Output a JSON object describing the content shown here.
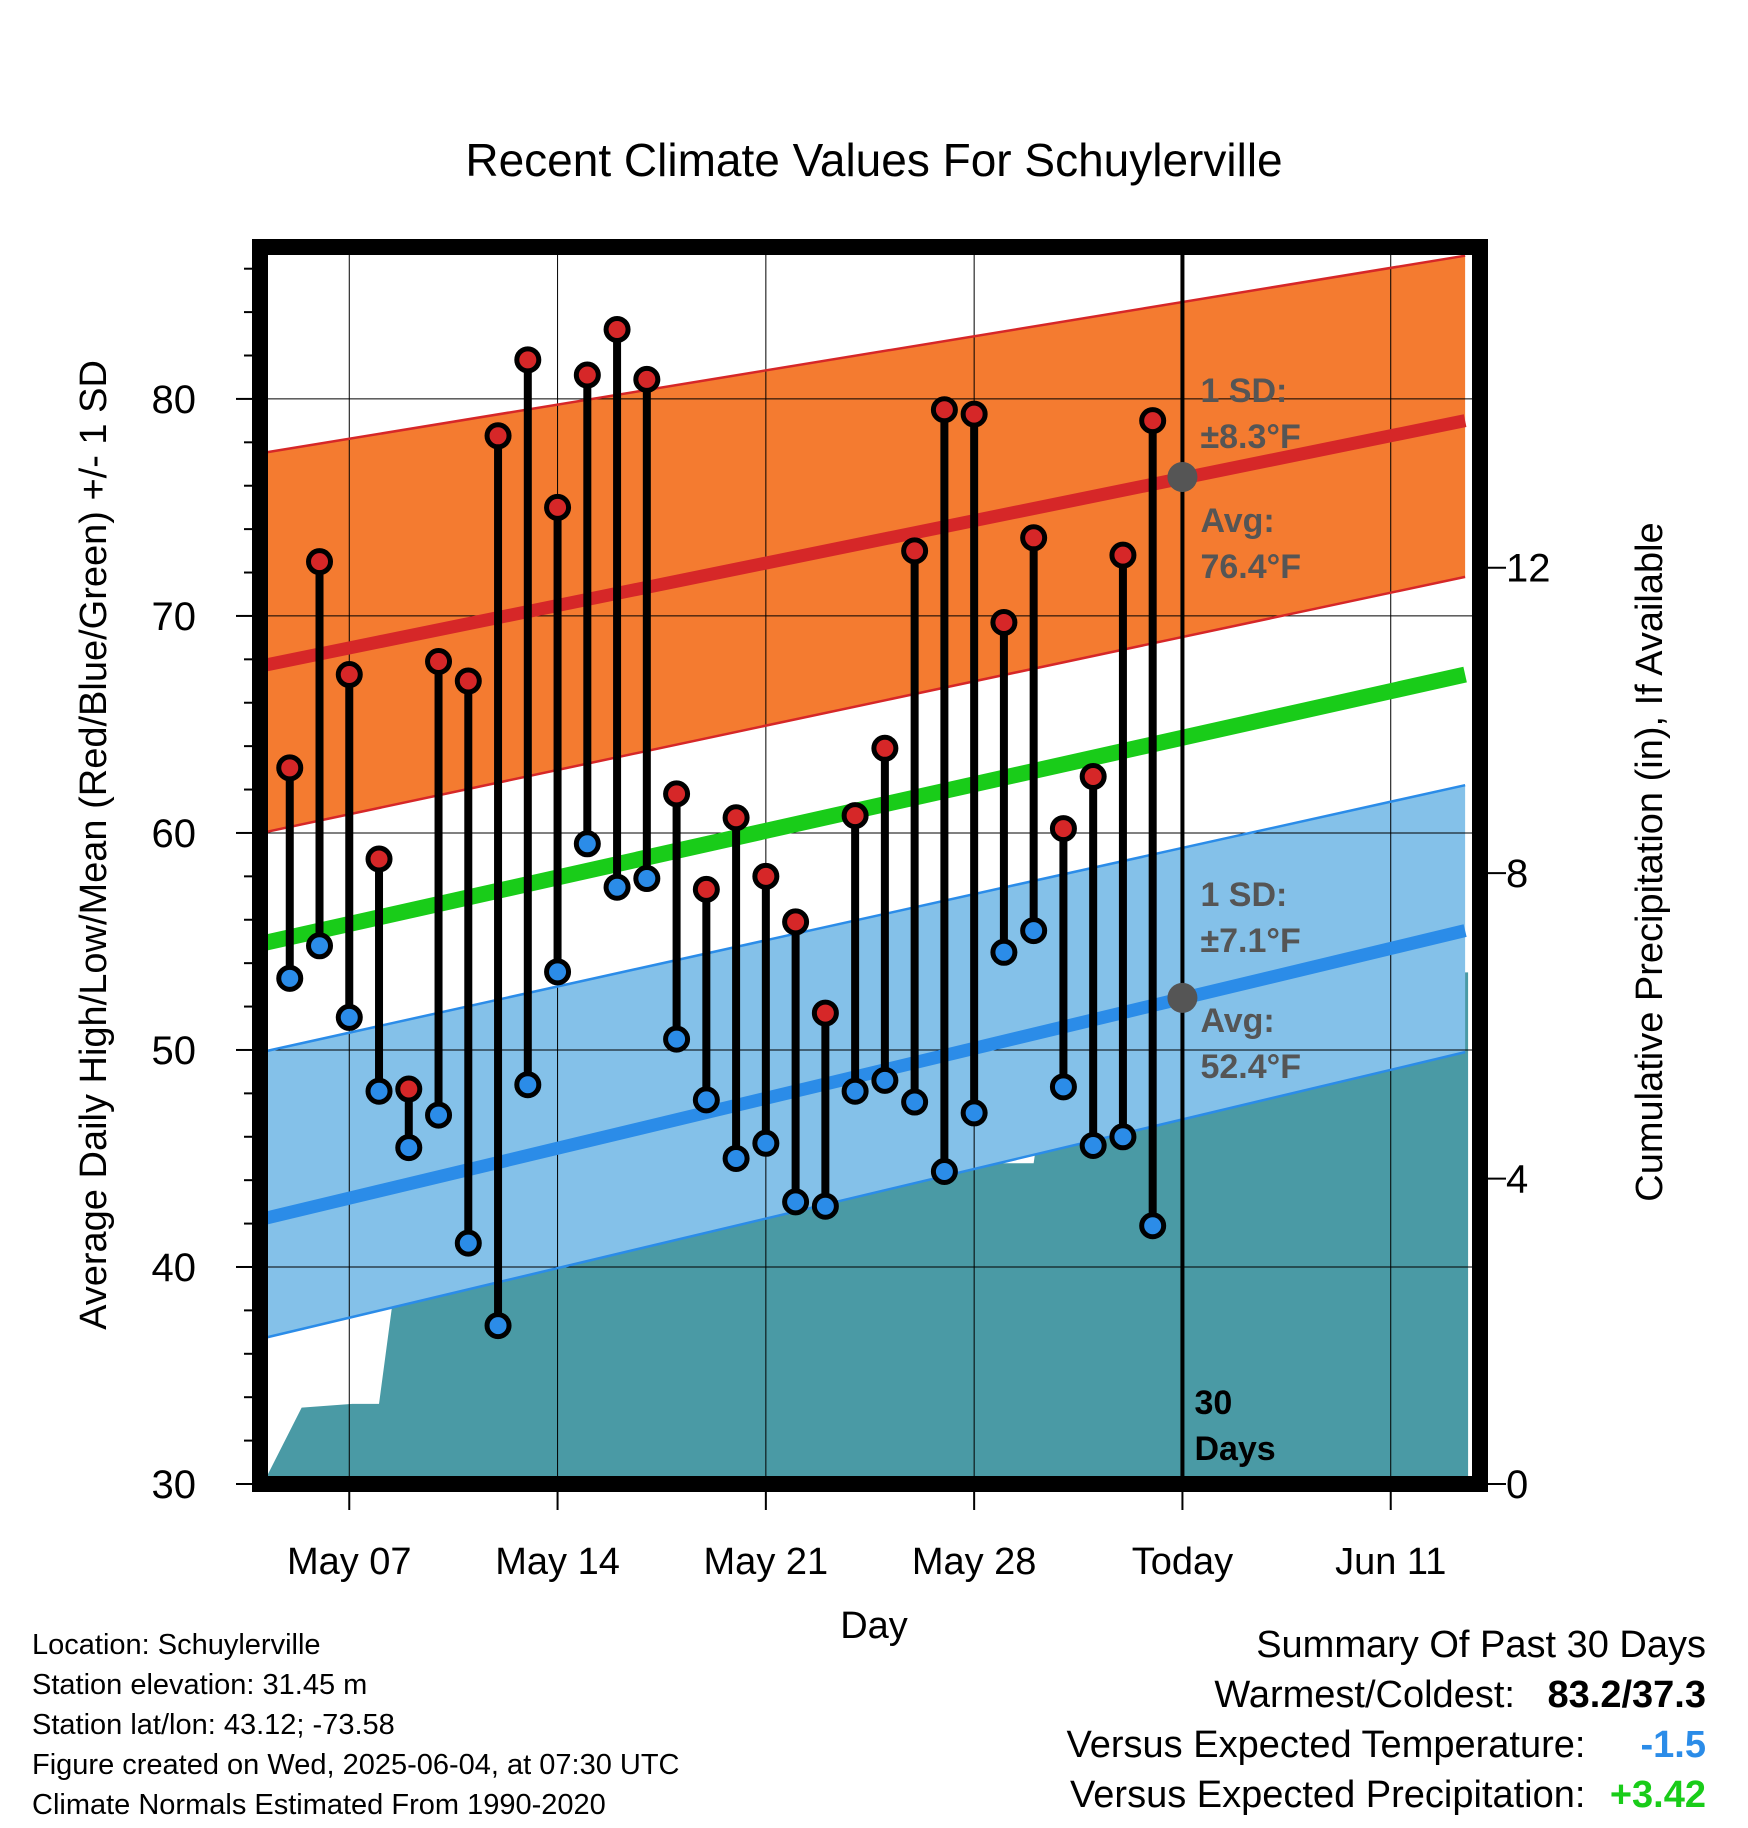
{
  "chart_data": {
    "type": "line",
    "title": "Recent Climate Values For Schuylerville",
    "xlabel": "Day",
    "ylabel_left": "Average Daily High/Low/Mean (Red/Blue/Green) +/- 1 SD",
    "ylabel_right": "Cumulative Precipitation (in), If Available",
    "x_ticks": [
      {
        "day": 7,
        "label": "May 07"
      },
      {
        "day": 14,
        "label": "May 14"
      },
      {
        "day": 21,
        "label": "May 21"
      },
      {
        "day": 28,
        "label": "May 28"
      },
      {
        "day": 35,
        "label": "Today"
      },
      {
        "day": 42,
        "label": "Jun 11"
      }
    ],
    "xlim": [
      4,
      45
    ],
    "ylim_left": [
      30,
      87
    ],
    "ylim_right": [
      0,
      16.2
    ],
    "y_left_ticks": [
      30,
      40,
      50,
      60,
      70,
      80
    ],
    "y_right_ticks": [
      0,
      4,
      8,
      12
    ],
    "today_day": 35,
    "normals": {
      "high_avg": [
        67.7,
        79.0
      ],
      "high_sd_upper": [
        77.5,
        86.6
      ],
      "high_sd_lower": [
        60.0,
        71.8
      ],
      "mean_avg": [
        54.9,
        67.3
      ],
      "low_avg": [
        42.2,
        55.5
      ],
      "low_sd_upper": [
        49.9,
        62.2
      ],
      "low_sd_lower": [
        36.7,
        49.9
      ],
      "colors": {
        "high_band": "#f47b30",
        "high_line": "#d62728",
        "low_band": "#84c1e9",
        "low_line": "#2b8ce8",
        "mean_line": "#19cc19",
        "precip": "#4a9aa5"
      }
    },
    "annotations": {
      "high_sd_label": "1 SD:",
      "high_sd_value": "±8.3°F",
      "high_avg_label": "Avg:",
      "high_avg_value": "76.4°F",
      "high_avg_marker": 76.4,
      "low_sd_label": "1 SD:",
      "low_sd_value": "±7.1°F",
      "low_avg_label": "Avg:",
      "low_avg_marker": 52.4,
      "low_avg_value": "52.4°F",
      "period_number": "30",
      "period_unit": "Days"
    },
    "daily": [
      {
        "day": 5,
        "high": 63.0,
        "low": 53.3
      },
      {
        "day": 6,
        "high": 72.5,
        "low": 54.8
      },
      {
        "day": 7,
        "high": 67.3,
        "low": 51.5
      },
      {
        "day": 8,
        "high": 58.8,
        "low": 48.1
      },
      {
        "day": 9,
        "high": 48.2,
        "low": 45.5
      },
      {
        "day": 10,
        "high": 67.9,
        "low": 47.0
      },
      {
        "day": 11,
        "high": 67.0,
        "low": 41.1
      },
      {
        "day": 12,
        "high": 78.3,
        "low": 37.3
      },
      {
        "day": 13,
        "high": 81.8,
        "low": 48.4
      },
      {
        "day": 14,
        "high": 75.0,
        "low": 53.6
      },
      {
        "day": 15,
        "high": 81.1,
        "low": 59.5
      },
      {
        "day": 16,
        "high": 83.2,
        "low": 57.5
      },
      {
        "day": 17,
        "high": 80.9,
        "low": 57.9
      },
      {
        "day": 18,
        "high": 61.8,
        "low": 50.5
      },
      {
        "day": 19,
        "high": 57.4,
        "low": 47.7
      },
      {
        "day": 20,
        "high": 60.7,
        "low": 45.0
      },
      {
        "day": 21,
        "high": 58.0,
        "low": 45.7
      },
      {
        "day": 22,
        "high": 55.9,
        "low": 43.0
      },
      {
        "day": 23,
        "high": 51.7,
        "low": 42.8
      },
      {
        "day": 24,
        "high": 60.8,
        "low": 48.1
      },
      {
        "day": 25,
        "high": 63.9,
        "low": 48.6
      },
      {
        "day": 26,
        "high": 73.0,
        "low": 47.6
      },
      {
        "day": 27,
        "high": 79.5,
        "low": 44.4
      },
      {
        "day": 28,
        "high": 79.3,
        "low": 47.1
      },
      {
        "day": 29,
        "high": 69.7,
        "low": 54.5
      },
      {
        "day": 30,
        "high": 73.6,
        "low": 55.5
      },
      {
        "day": 31,
        "high": 60.2,
        "low": 48.3
      },
      {
        "day": 32,
        "high": 62.6,
        "low": 45.6
      },
      {
        "day": 33,
        "high": 72.8,
        "low": 46.0
      },
      {
        "day": 34,
        "high": 79.0,
        "low": 41.9
      }
    ],
    "precip_cumulative": [
      [
        4.1,
        0.0
      ],
      [
        5.4,
        1.0
      ],
      [
        7.1,
        1.05
      ],
      [
        8.0,
        1.05
      ],
      [
        8.6,
        2.8
      ],
      [
        9.1,
        3.0
      ],
      [
        14.0,
        3.0
      ],
      [
        15.0,
        3.0
      ],
      [
        16.0,
        3.3
      ],
      [
        17.0,
        3.65
      ],
      [
        18.0,
        3.85
      ],
      [
        19.0,
        3.85
      ],
      [
        20.0,
        3.85
      ],
      [
        21.0,
        3.9
      ],
      [
        22.0,
        4.0
      ],
      [
        23.0,
        4.1
      ],
      [
        24.0,
        4.2
      ],
      [
        25.0,
        4.2
      ],
      [
        29.0,
        4.2
      ],
      [
        30.0,
        4.2
      ],
      [
        30.9,
        6.7
      ],
      [
        44.6,
        6.7
      ]
    ]
  },
  "info": {
    "location": "Location: Schuylerville",
    "elevation": "Station elevation: 31.45 m",
    "latlon": "Station lat/lon: 43.12; -73.58",
    "created": "Figure created on Wed, 2025-06-04, at 07:30 UTC",
    "normals": "Climate Normals Estimated From 1990-2020"
  },
  "summary": {
    "title": "Summary Of Past 30 Days",
    "warm_cold_label": "Warmest/Coldest:",
    "warm_cold_value": "83.2/37.3",
    "temp_label": "Versus Expected Temperature:",
    "temp_value": "-1.5",
    "precip_label": "Versus Expected Precipitation:",
    "precip_value": "+3.42",
    "colors": {
      "temp": "#2b8ce8",
      "precip": "#19cc19"
    }
  }
}
